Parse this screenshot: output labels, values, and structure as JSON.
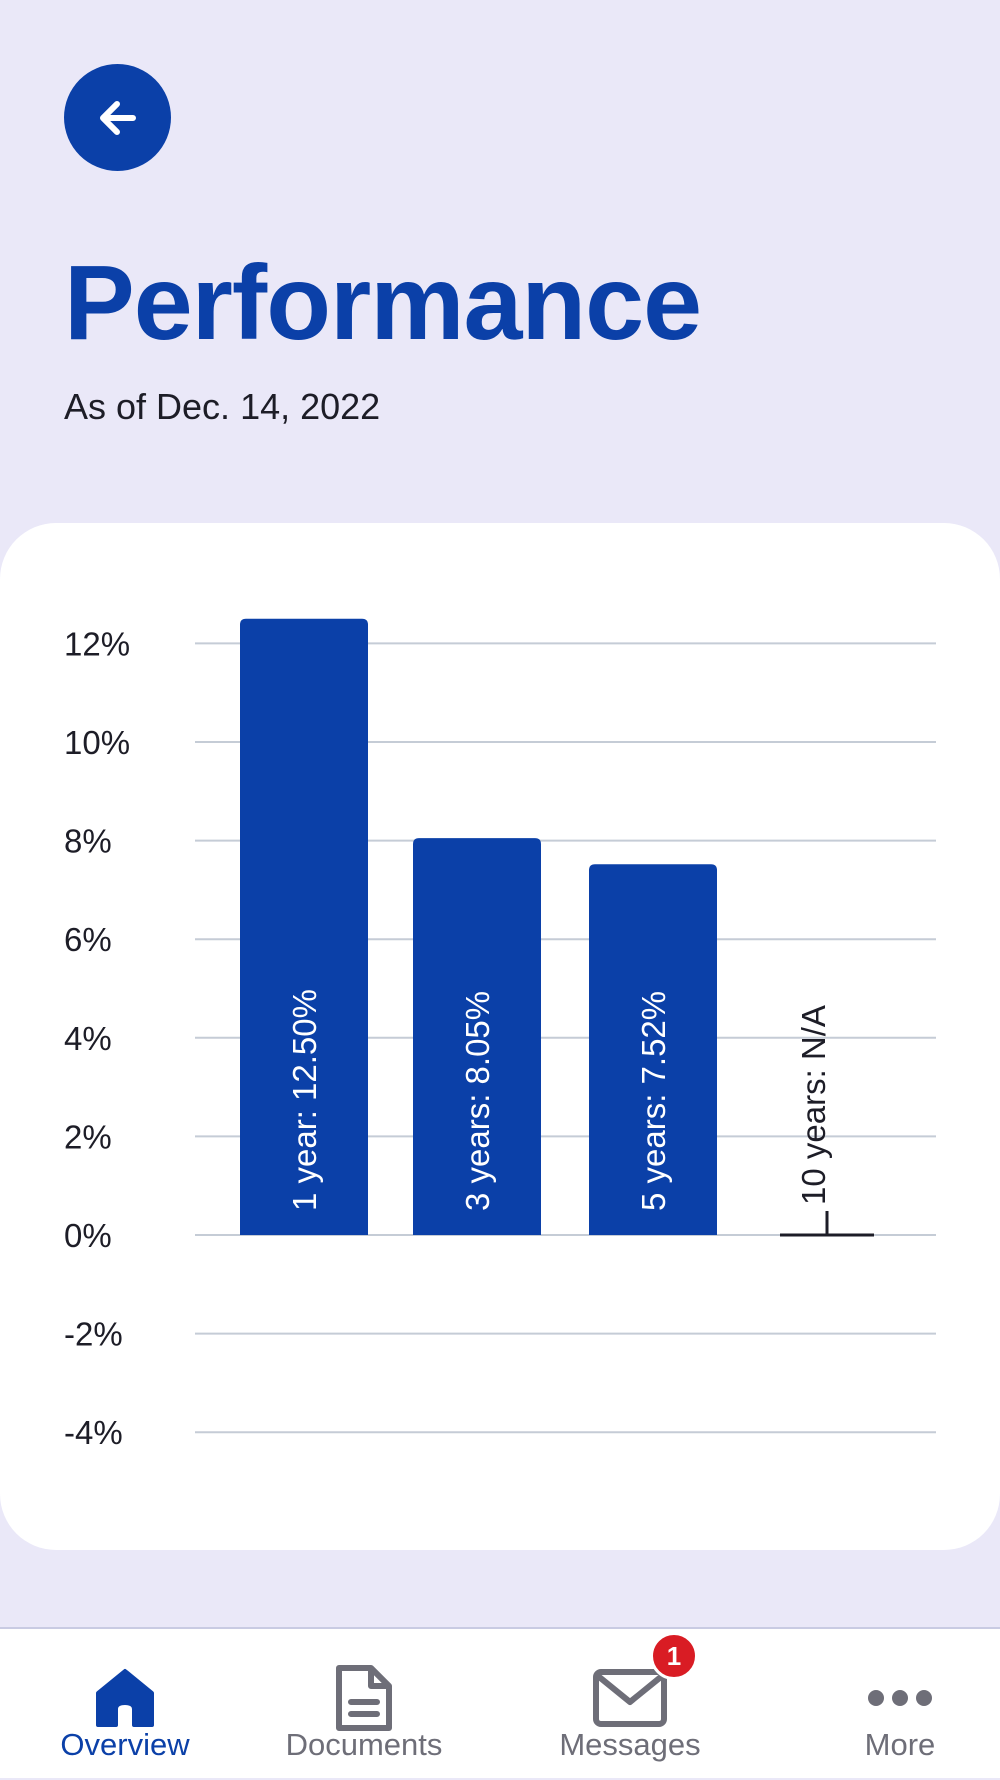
{
  "header": {
    "title": "Performance",
    "subtitle": "As of Dec. 14, 2022"
  },
  "colors": {
    "background": "#eae8f8",
    "accent": "#0b40a8",
    "grid": "#c5ccd6",
    "badge": "#d91c24"
  },
  "chart_data": {
    "type": "bar",
    "categories": [
      "1 year",
      "3 years",
      "5 years",
      "10 years"
    ],
    "values": [
      12.5,
      8.05,
      7.52,
      null
    ],
    "bar_labels": [
      "1 year: 12.50%",
      "3 years: 8.05%",
      "5 years: 7.52%",
      "10 years: N/A"
    ],
    "yticks": [
      "12%",
      "10%",
      "8%",
      "6%",
      "4%",
      "2%",
      "0%",
      "-2%",
      "-4%"
    ],
    "ytick_values": [
      12,
      10,
      8,
      6,
      4,
      2,
      0,
      -2,
      -4
    ],
    "ylim": [
      -4,
      12
    ],
    "grid": true,
    "orientation": "vertical"
  },
  "nav": {
    "items": [
      {
        "label": "Overview",
        "icon": "home-icon",
        "active": true
      },
      {
        "label": "Documents",
        "icon": "document-icon",
        "active": false
      },
      {
        "label": "Messages",
        "icon": "mail-icon",
        "active": false
      },
      {
        "label": "More",
        "icon": "more-icon",
        "active": false
      }
    ],
    "messages_badge": "1"
  }
}
